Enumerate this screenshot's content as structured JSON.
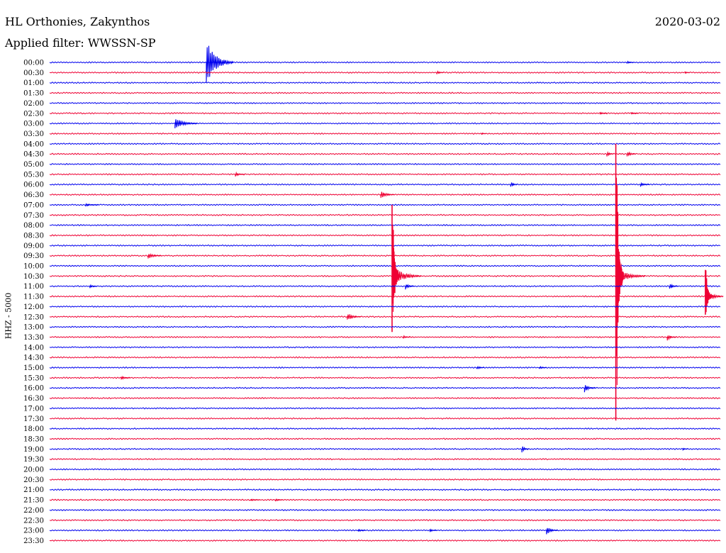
{
  "header": {
    "station": "HL Orthonies, Zakynthos",
    "filter": "Applied filter: WWSSN-SP",
    "date": "2020-03-02"
  },
  "channel_label": "HHZ - 5000",
  "colors": {
    "even_trace": "#0000ee",
    "odd_trace": "#ee0033",
    "text": "#000000"
  },
  "chart_data": {
    "type": "line",
    "subtype": "helicorder",
    "title": "HL Orthonies, Zakynthos",
    "subtitle": "Applied filter: WWSSN-SP",
    "date": "2020-03-02",
    "ylabel": "HHZ - 5000",
    "row_labels": [
      "00:00",
      "00:30",
      "01:00",
      "01:30",
      "02:00",
      "02:30",
      "03:00",
      "03:30",
      "04:00",
      "04:30",
      "05:00",
      "05:30",
      "06:00",
      "06:30",
      "07:00",
      "07:30",
      "08:00",
      "08:30",
      "09:00",
      "09:30",
      "10:00",
      "10:30",
      "11:00",
      "11:30",
      "12:00",
      "12:30",
      "13:00",
      "13:30",
      "14:00",
      "14:30",
      "15:00",
      "15:30",
      "16:00",
      "16:30",
      "17:00",
      "17:30",
      "18:00",
      "18:30",
      "19:00",
      "19:30",
      "20:00",
      "20:30",
      "21:00",
      "21:30",
      "22:00",
      "22:30",
      "23:00",
      "23:30"
    ],
    "row_minutes": 30,
    "events": [
      {
        "row": 0,
        "minute": 7.0,
        "amp": 4.0,
        "dur": 1.2,
        "noise": 0.15
      },
      {
        "row": 0,
        "minute": 25.8,
        "amp": 0.3,
        "dur": 0.3
      },
      {
        "row": 1,
        "minute": 17.3,
        "amp": 0.4,
        "dur": 0.3
      },
      {
        "row": 1,
        "minute": 28.4,
        "amp": 0.2,
        "dur": 0.2
      },
      {
        "row": 5,
        "minute": 24.6,
        "amp": 0.3,
        "dur": 0.3
      },
      {
        "row": 5,
        "minute": 26.0,
        "amp": 0.25,
        "dur": 0.3
      },
      {
        "row": 6,
        "minute": 5.6,
        "amp": 1.2,
        "dur": 1.0
      },
      {
        "row": 7,
        "minute": 19.3,
        "amp": 0.2,
        "dur": 0.2
      },
      {
        "row": 9,
        "minute": 25.8,
        "amp": 0.6,
        "dur": 0.4
      },
      {
        "row": 9,
        "minute": 24.9,
        "amp": 0.5,
        "dur": 0.3,
        "start_up": 0.9
      },
      {
        "row": 11,
        "minute": 8.3,
        "amp": 0.4,
        "dur": 0.4
      },
      {
        "row": 12,
        "minute": 20.6,
        "amp": 0.6,
        "dur": 0.3
      },
      {
        "row": 12,
        "minute": 26.4,
        "amp": 0.4,
        "dur": 0.4
      },
      {
        "row": 13,
        "minute": 14.8,
        "amp": 0.8,
        "dur": 0.6
      },
      {
        "row": 14,
        "minute": 1.6,
        "amp": 0.3,
        "dur": 0.6
      },
      {
        "row": 19,
        "minute": 4.4,
        "amp": 0.6,
        "dur": 0.6
      },
      {
        "row": 21,
        "minute": 15.3,
        "amp": 2.2,
        "dur": 1.3,
        "spike_up": 7.0,
        "spike_down": 5.5
      },
      {
        "row": 21,
        "minute": 25.3,
        "amp": 2.0,
        "dur": 1.3,
        "spike_up": 13.0,
        "spike_down": 14.2
      },
      {
        "row": 22,
        "minute": 1.8,
        "amp": 0.4,
        "dur": 0.3
      },
      {
        "row": 22,
        "minute": 15.9,
        "amp": 0.6,
        "dur": 0.4
      },
      {
        "row": 22,
        "minute": 27.7,
        "amp": 0.6,
        "dur": 0.4
      },
      {
        "row": 23,
        "minute": 29.3,
        "amp": 1.6,
        "dur": 0.8,
        "spike_up": 2.6,
        "spike_down": 1.8
      },
      {
        "row": 25,
        "minute": 13.3,
        "amp": 0.8,
        "dur": 0.6
      },
      {
        "row": 27,
        "minute": 15.8,
        "amp": 0.3,
        "dur": 0.3
      },
      {
        "row": 27,
        "minute": 27.6,
        "amp": 0.6,
        "dur": 0.4
      },
      {
        "row": 30,
        "minute": 19.1,
        "amp": 0.4,
        "dur": 0.3
      },
      {
        "row": 30,
        "minute": 21.9,
        "amp": 0.3,
        "dur": 0.3
      },
      {
        "row": 31,
        "minute": 3.2,
        "amp": 0.4,
        "dur": 0.4
      },
      {
        "row": 32,
        "minute": 23.9,
        "amp": 0.8,
        "dur": 0.5
      },
      {
        "row": 38,
        "minute": 21.1,
        "amp": 0.8,
        "dur": 0.3
      },
      {
        "row": 38,
        "minute": 28.3,
        "amp": 0.2,
        "dur": 0.2
      },
      {
        "row": 43,
        "minute": 9.0,
        "amp": 0.2,
        "dur": 0.4
      },
      {
        "row": 43,
        "minute": 10.1,
        "amp": 0.3,
        "dur": 0.3
      },
      {
        "row": 46,
        "minute": 13.8,
        "amp": 0.3,
        "dur": 0.3
      },
      {
        "row": 46,
        "minute": 17.0,
        "amp": 0.3,
        "dur": 0.3
      },
      {
        "row": 46,
        "minute": 22.2,
        "amp": 0.8,
        "dur": 0.5
      }
    ]
  }
}
